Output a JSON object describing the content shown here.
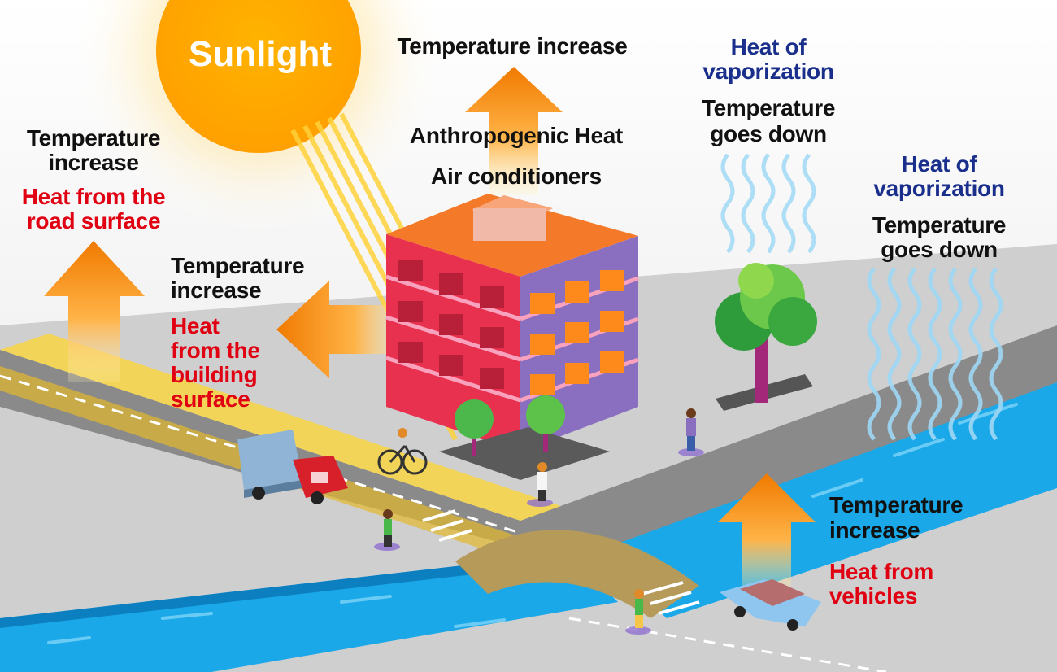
{
  "sun": {
    "label": "Sunlight"
  },
  "labels": {
    "top_center": {
      "title": "Temperature increase",
      "line1": "Anthropogenic Heat",
      "line2": "Air conditioners"
    },
    "road": {
      "title_line1": "Temperature",
      "title_line2": "increase",
      "cause_line1": "Heat from the",
      "cause_line2": "road surface"
    },
    "building": {
      "title_line1": "Temperature",
      "title_line2": "increase",
      "cause_line1": "Heat",
      "cause_line2": "from the",
      "cause_line3": "building",
      "cause_line4": "surface"
    },
    "tree": {
      "vapor_line1": "Heat of",
      "vapor_line2": "vaporization",
      "effect_line1": "Temperature",
      "effect_line2": "goes down"
    },
    "river": {
      "vapor_line1": "Heat of",
      "vapor_line2": "vaporization",
      "effect_line1": "Temperature",
      "effect_line2": "goes down"
    },
    "vehicles": {
      "title_line1": "Temperature",
      "title_line2": "increase",
      "cause_line1": "Heat from",
      "cause_line2": "vehicles"
    }
  },
  "colors": {
    "heat_text": "#e00012",
    "cool_text": "#1a2f8c",
    "label_text": "#111111",
    "sun": "#ffa800",
    "arrow_top": "#f07a00",
    "arrow_bottom": "#ffe27a",
    "water": "#1aa8e8",
    "road_heat": "#f5d54a",
    "building": "#e8304f"
  },
  "icons": [
    "sun-icon",
    "building-icon",
    "tree-icon",
    "truck-icon",
    "car-icon",
    "bicycle-icon",
    "pedestrian-icon",
    "river-icon",
    "heat-arrow-icon",
    "cooling-wave-icon"
  ]
}
